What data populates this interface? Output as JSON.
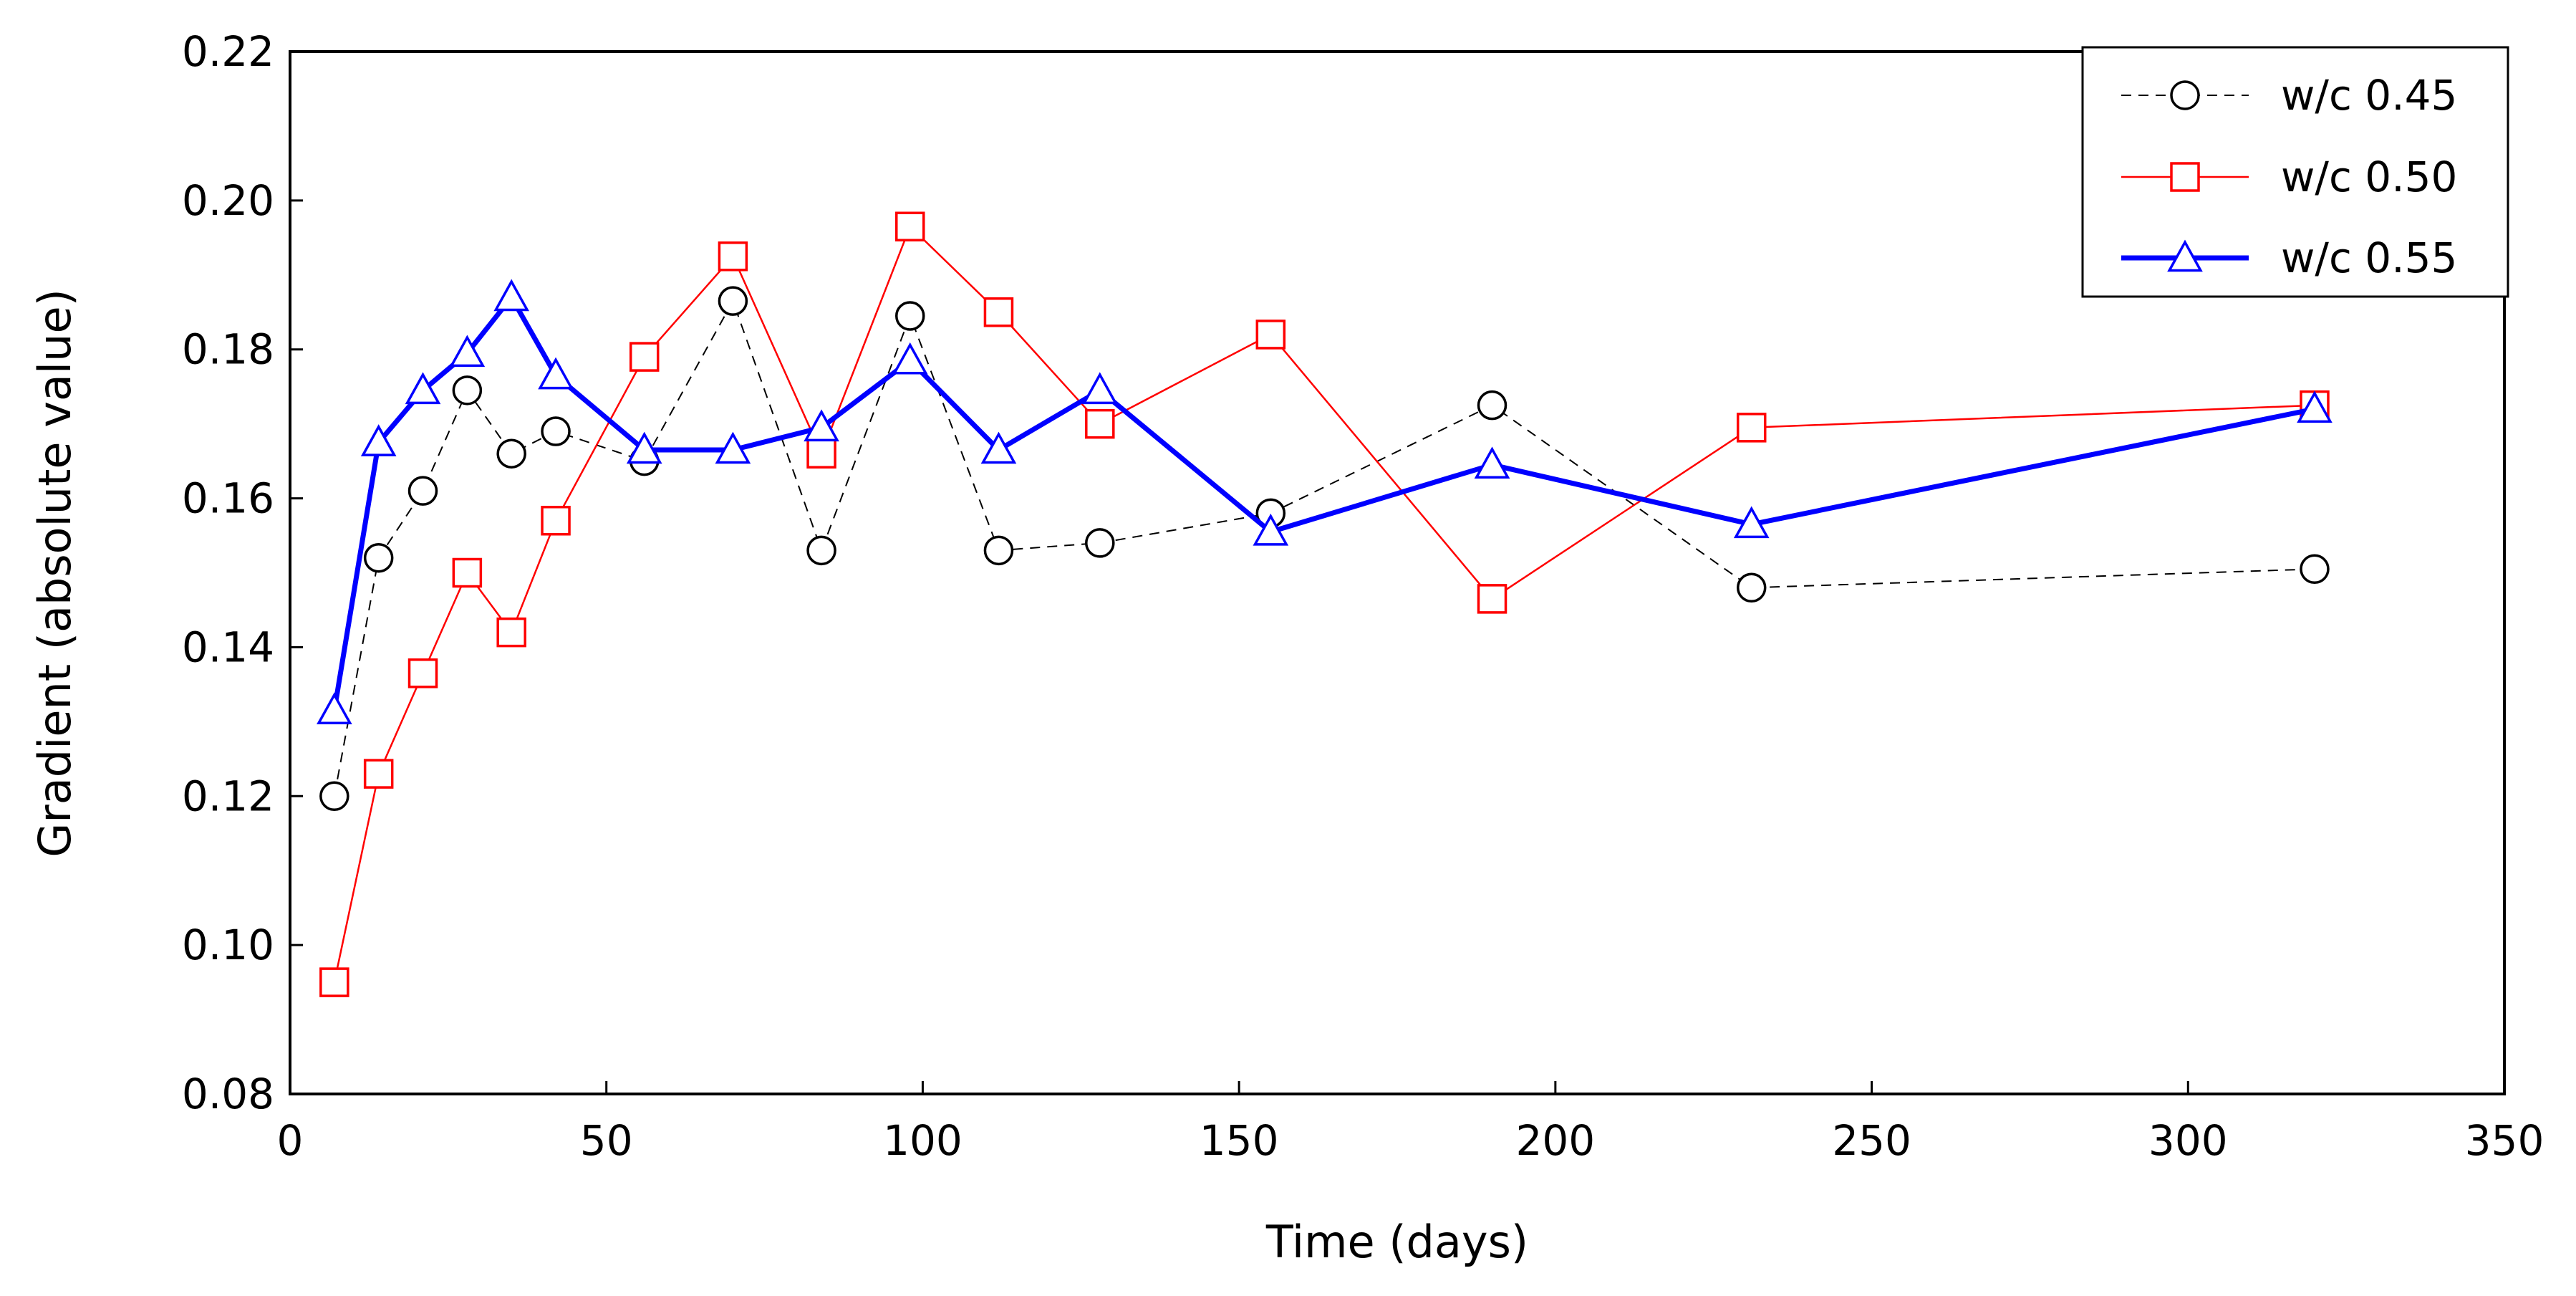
{
  "chart_data": {
    "type": "line",
    "title": "",
    "xlabel": "Time (days)",
    "ylabel": "Gradient (absolute value)",
    "xlim": [
      0,
      350
    ],
    "ylim": [
      0.08,
      0.22
    ],
    "xticks": [
      0,
      50,
      100,
      150,
      200,
      250,
      300,
      350
    ],
    "yticks": [
      0.08,
      0.1,
      0.12,
      0.14,
      0.16,
      0.18,
      0.2,
      0.22
    ],
    "xtick_labels": [
      "0",
      "50",
      "100",
      "150",
      "200",
      "250",
      "300",
      "350"
    ],
    "ytick_labels": [
      "0.08",
      "0.10",
      "0.12",
      "0.14",
      "0.16",
      "0.18",
      "0.20",
      "0.22"
    ],
    "grid": false,
    "legend_position": "top-right",
    "series": [
      {
        "name": "w/c 0.45",
        "color": "#000000",
        "marker": "circle",
        "line_style": "dashed",
        "x": [
          7,
          14,
          21,
          28,
          35,
          42,
          56,
          70,
          84,
          98,
          112,
          128,
          155,
          190,
          231,
          320
        ],
        "y": [
          0.12,
          0.152,
          0.161,
          0.1745,
          0.166,
          0.169,
          0.165,
          0.1865,
          0.153,
          0.1845,
          0.153,
          0.154,
          0.158,
          0.1725,
          0.148,
          0.1505
        ]
      },
      {
        "name": "w/c 0.50",
        "color": "#ff0000",
        "marker": "square",
        "line_style": "solid-thin",
        "x": [
          7,
          14,
          21,
          28,
          35,
          42,
          56,
          70,
          84,
          98,
          112,
          128,
          155,
          190,
          231,
          320
        ],
        "y": [
          0.095,
          0.123,
          0.1365,
          0.15,
          0.142,
          0.157,
          0.179,
          0.1925,
          0.166,
          0.1965,
          0.185,
          0.17,
          0.182,
          0.1465,
          0.1695,
          0.1725
        ]
      },
      {
        "name": "w/c 0.55",
        "color": "#0000ff",
        "marker": "triangle",
        "line_style": "solid-thick",
        "x": [
          7,
          14,
          21,
          28,
          35,
          42,
          56,
          70,
          84,
          98,
          112,
          128,
          155,
          190,
          231,
          320
        ],
        "y": [
          0.1315,
          0.1675,
          0.1745,
          0.1795,
          0.187,
          0.1765,
          0.1665,
          0.1665,
          0.1695,
          0.1785,
          0.1665,
          0.1745,
          0.1555,
          0.1645,
          0.1565,
          0.172
        ]
      }
    ]
  }
}
